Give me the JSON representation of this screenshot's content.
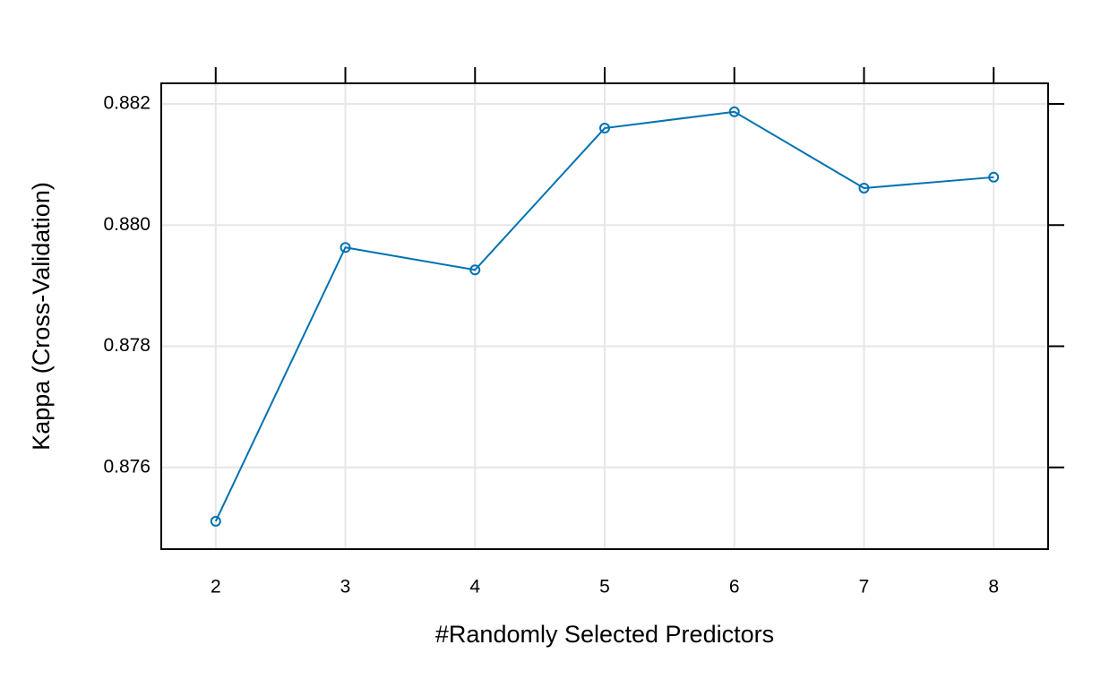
{
  "chart_data": {
    "type": "line",
    "x_label": "#Randomly Selected Predictors",
    "y_label": "Kappa (Cross-Validation)",
    "x": [
      2,
      3,
      4,
      5,
      6,
      7,
      8
    ],
    "values": [
      0.87511,
      0.87963,
      0.87926,
      0.8816,
      0.88187,
      0.88061,
      0.88079
    ],
    "color": "#0072b2",
    "xlim": [
      1.58,
      8.42
    ],
    "ylim": [
      0.87465,
      0.88234
    ],
    "xticks": [
      2,
      3,
      4,
      5,
      6,
      7,
      8
    ],
    "yticks": [
      0.876,
      0.878,
      {
        "value": 0.88,
        "label": "0.880"
      },
      0.882
    ],
    "grid": true
  }
}
